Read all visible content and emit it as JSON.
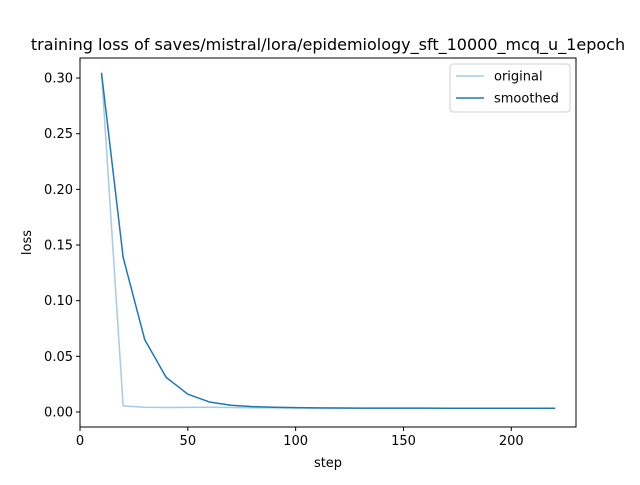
{
  "chart_data": {
    "type": "line",
    "title": "training loss of saves/mistral/lora/epidemiology_sft_10000_mcq_u_1epoch",
    "xlabel": "step",
    "ylabel": "loss",
    "xlim": [
      0,
      230
    ],
    "ylim": [
      -0.0135,
      0.318
    ],
    "xticks": [
      0,
      50,
      100,
      150,
      200
    ],
    "yticks": [
      0.0,
      0.05,
      0.1,
      0.15,
      0.2,
      0.25,
      0.3
    ],
    "xtick_labels": [
      "0",
      "50",
      "100",
      "150",
      "200"
    ],
    "ytick_labels": [
      "0.00",
      "0.05",
      "0.10",
      "0.15",
      "0.20",
      "0.25",
      "0.30"
    ],
    "grid": false,
    "legend_position": "top-right",
    "series": [
      {
        "name": "original",
        "color": "#a6cbe3",
        "x": [
          10,
          20,
          30,
          40,
          50,
          60,
          70,
          80,
          90,
          100,
          110,
          120,
          130,
          140,
          150,
          160,
          170,
          180,
          190,
          200,
          210,
          220
        ],
        "y": [
          0.304,
          0.0055,
          0.0043,
          0.004,
          0.0041,
          0.0042,
          0.004,
          0.0038,
          0.0037,
          0.0036,
          0.0035,
          0.0035,
          0.0034,
          0.0034,
          0.0034,
          0.0034,
          0.0033,
          0.0033,
          0.0033,
          0.0033,
          0.0033,
          0.0033
        ]
      },
      {
        "name": "smoothed",
        "color": "#1f77b4",
        "x": [
          10,
          20,
          30,
          40,
          50,
          60,
          70,
          80,
          90,
          100,
          110,
          120,
          130,
          140,
          150,
          160,
          170,
          180,
          190,
          200,
          210,
          220
        ],
        "y": [
          0.304,
          0.139,
          0.065,
          0.031,
          0.016,
          0.009,
          0.006,
          0.0048,
          0.0042,
          0.0039,
          0.0037,
          0.0036,
          0.0035,
          0.0035,
          0.0035,
          0.0035,
          0.0034,
          0.0034,
          0.0034,
          0.0034,
          0.0034,
          0.0034
        ]
      }
    ]
  }
}
